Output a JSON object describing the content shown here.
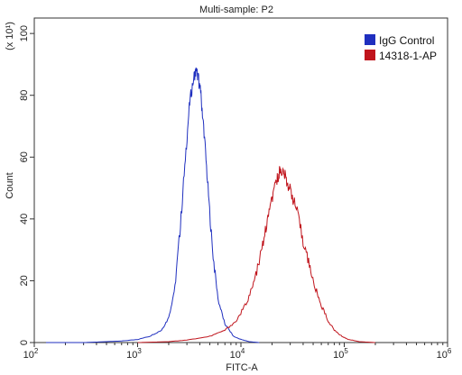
{
  "chart_data": {
    "type": "line",
    "title": "Multi-sample: P2",
    "xlabel": "FITC-A",
    "ylabel": "Count",
    "y_multiplier_label": "(x 10¹)",
    "x_scale": "log",
    "xlim": [
      100,
      1000000
    ],
    "ylim": [
      0,
      105
    ],
    "x_ticks": [
      {
        "value": 100,
        "base": "10",
        "exp": "2"
      },
      {
        "value": 1000,
        "base": "10",
        "exp": "3"
      },
      {
        "value": 10000,
        "base": "10",
        "exp": "4"
      },
      {
        "value": 100000,
        "base": "10",
        "exp": "5"
      },
      {
        "value": 1000000,
        "base": "10",
        "exp": "6"
      }
    ],
    "y_ticks": [
      0,
      20,
      40,
      60,
      80,
      100
    ],
    "grid": false,
    "legend_position": "top-right",
    "series": [
      {
        "name": "IgG Control",
        "color": "#1f2fbf",
        "x": [
          130,
          200,
          300,
          500,
          700,
          1000,
          1300,
          1700,
          2000,
          2300,
          2600,
          2900,
          3200,
          3500,
          3700,
          3900,
          4100,
          4400,
          4800,
          5300,
          6000,
          7000,
          8500,
          10000,
          12000,
          15000
        ],
        "y": [
          0,
          0,
          0,
          0.3,
          0.5,
          1,
          2,
          4,
          8,
          18,
          38,
          60,
          78,
          86,
          88,
          85,
          80,
          68,
          50,
          30,
          14,
          6,
          2,
          1,
          0.3,
          0
        ]
      },
      {
        "name": "14318-1-AP",
        "color": "#c0141c",
        "x": [
          1000,
          2000,
          3000,
          5000,
          7000,
          9000,
          11000,
          13000,
          15000,
          17000,
          19000,
          21000,
          22500,
          24000,
          26000,
          28000,
          31000,
          35000,
          40000,
          46000,
          52000,
          60000,
          70000,
          80000,
          95000,
          110000,
          140000,
          200000
        ],
        "y": [
          0,
          0.3,
          0.8,
          2,
          4,
          7,
          12,
          18,
          26,
          35,
          43,
          49,
          53,
          56,
          55,
          52,
          48,
          42,
          33,
          25,
          18,
          12,
          7,
          4,
          2,
          1,
          0.3,
          0
        ]
      }
    ]
  }
}
